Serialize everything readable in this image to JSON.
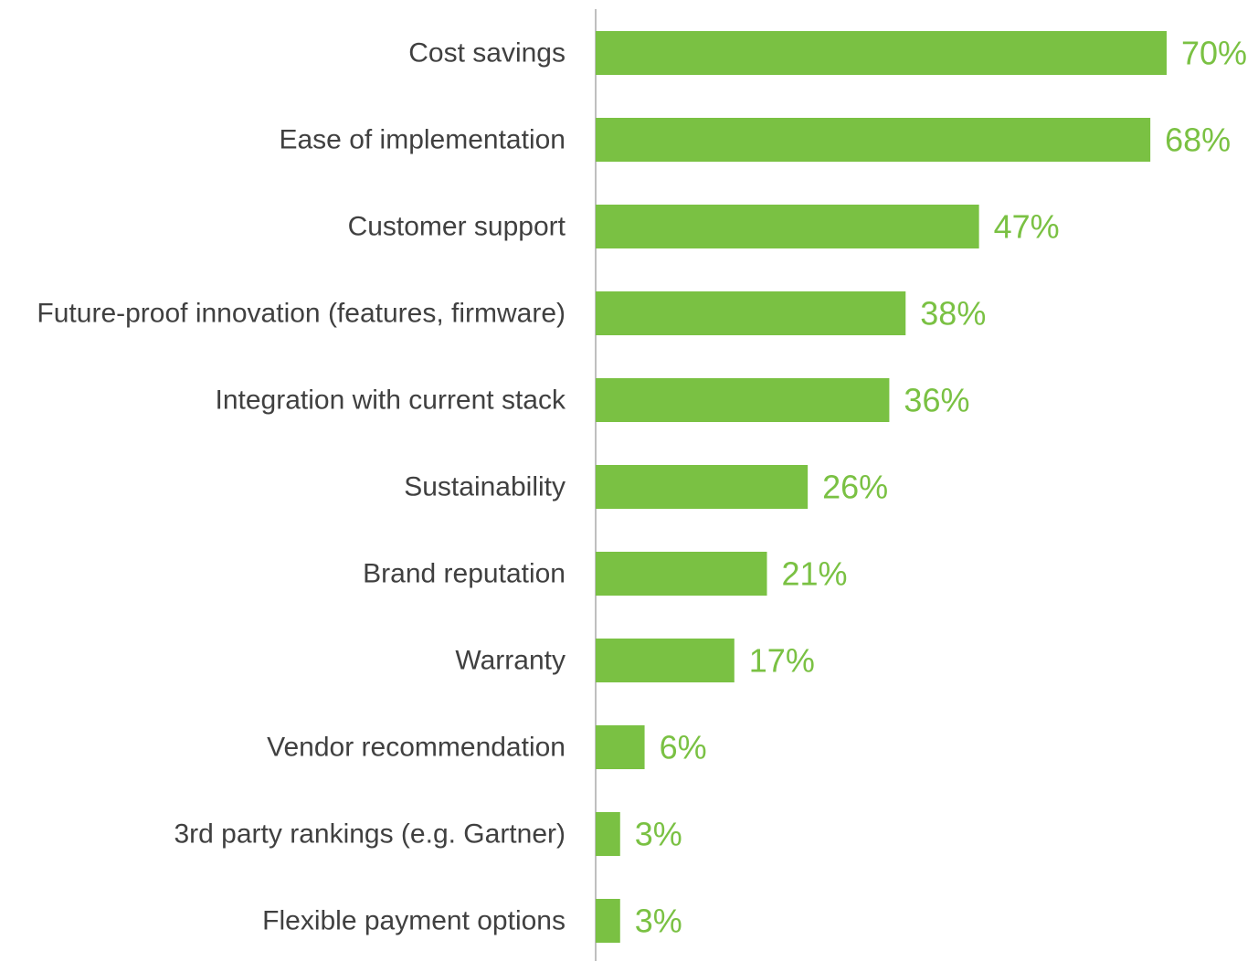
{
  "chart_data": {
    "type": "bar",
    "orientation": "horizontal",
    "categories": [
      "Cost savings",
      "Ease of implementation",
      "Customer support",
      "Future-proof innovation (features, firmware)",
      "Integration with current stack",
      "Sustainability",
      "Brand reputation",
      "Warranty",
      "Vendor recommendation",
      "3rd party rankings (e.g. Gartner)",
      "Flexible payment options"
    ],
    "values": [
      70,
      68,
      47,
      38,
      36,
      26,
      21,
      17,
      6,
      3,
      3
    ],
    "value_labels": [
      "70%",
      "68%",
      "47%",
      "38%",
      "36%",
      "26%",
      "21%",
      "17%",
      "6%",
      "3%",
      "3%"
    ],
    "value_unit": "%",
    "title": "",
    "xlabel": "",
    "ylabel": "",
    "xlim": [
      0,
      70
    ],
    "grid": false,
    "legend": "none",
    "colors": {
      "bar": "#7ac143",
      "value_label": "#7ac143",
      "category_label": "#404040",
      "axis": "#bfbfbf"
    }
  }
}
